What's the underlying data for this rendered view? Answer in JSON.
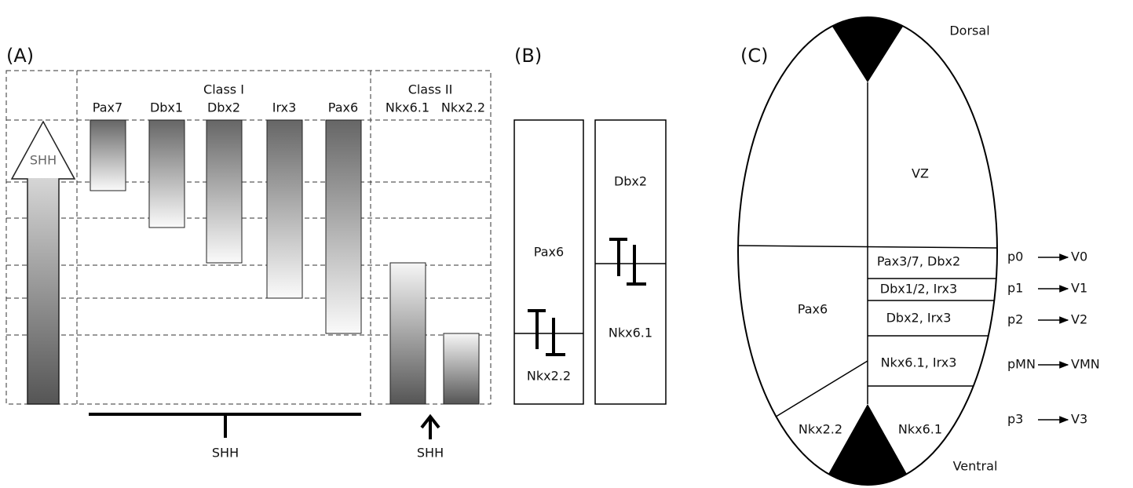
{
  "panel_a": {
    "label": "(A)",
    "arrow_label": "SHH",
    "class_1": "Class I",
    "class_2": "Class II",
    "genes": [
      "Pax7",
      "Dbx1",
      "Dbx2",
      "Irx3",
      "Pax6",
      "Nkx6.1",
      "Nkx2.2"
    ],
    "repression_label": "SHH",
    "induction_label": "SHH"
  },
  "panel_b": {
    "label": "(B)",
    "columns": [
      {
        "top": "Pax6",
        "bottom": "Nkx2.2"
      },
      {
        "top": "Dbx2",
        "bottom": "Nkx6.1"
      }
    ]
  },
  "panel_c": {
    "label": "(C)",
    "dorsal": "Dorsal",
    "ventral": "Ventral",
    "vz": "VZ",
    "left_upper": "Pax6",
    "left_lower": "Nkx2.2",
    "floor": "Nkx6.1",
    "domains": [
      {
        "genes": "Pax3/7, Dbx2",
        "progenitor": "p0",
        "neuron": "V0"
      },
      {
        "genes": "Dbx1/2, Irx3",
        "progenitor": "p1",
        "neuron": "V1"
      },
      {
        "genes": "Dbx2, Irx3",
        "progenitor": "p2",
        "neuron": "V2"
      },
      {
        "genes": "Nkx6.1, Irx3",
        "progenitor": "pMN",
        "neuron": "VMN"
      },
      {
        "progenitor": "p3",
        "neuron": "V3"
      }
    ]
  }
}
